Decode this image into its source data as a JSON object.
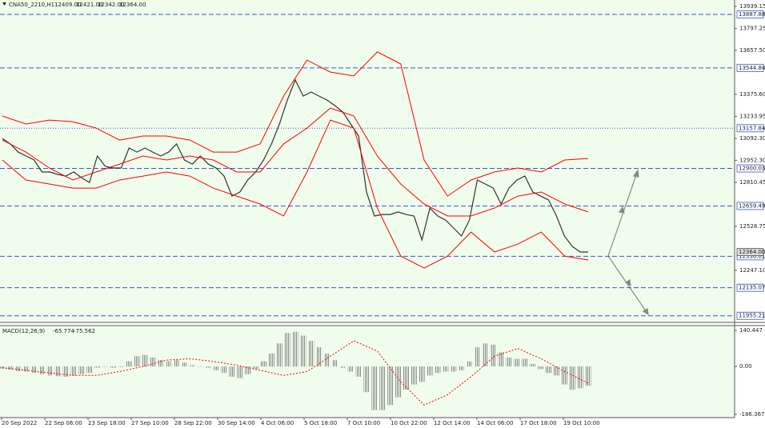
{
  "chart_data": [
    {
      "type": "line",
      "title": "CNA50_2210,H1",
      "ohlc": [
        "12409.00",
        "12421.00",
        "12342.00",
        "12364.00"
      ],
      "ylim": [
        11918,
        13980
      ],
      "yticks": [
        13939.15,
        13797.25,
        {
          "value": 13657.5,
          "label": "13657.50"
        },
        {
          "value": 13375.6,
          "label": "13375.60"
        },
        13233.95,
        {
          "value": 13092.3,
          "label": "13092.30"
        },
        {
          "value": 12952.3,
          "label": "12952.30"
        },
        12810.45,
        12528.75,
        {
          "value": 12247.1,
          "label": "12247.10"
        }
      ],
      "levels": [
        13887.88,
        13544.84,
        13157.84,
        12900.03,
        12659.49,
        12336.61,
        12135.07,
        11955.21
      ],
      "level_styles": [
        "dashed",
        "dashed",
        "dotted",
        "dashed",
        "dashed",
        "dashed",
        "dashed",
        "dashed"
      ],
      "level_color": "#3a55d8",
      "current_price": {
        "value": 12364,
        "label": "12364.00"
      },
      "x_labels": [
        "20 Sep 2022",
        "22 Sep 06:00",
        "23 Sep 18:00",
        "27 Sep 10:00",
        "28 Sep 22:00",
        "30 Sep 14:00",
        "4 Oct 06:00",
        "5 Oct 18:00",
        "7 Oct 10:00",
        "10 Oct 22:00",
        "12 Oct 14:00",
        "14 Oct 06:00",
        "17 Oct 18:00",
        "19 Oct 10:00"
      ],
      "series": [
        {
          "color": "#333333",
          "values": [
            13092,
            13057,
            13005,
            12980,
            12954,
            12877,
            12877,
            12862,
            12851,
            12877,
            12841,
            12810,
            12980,
            12913,
            12903,
            12903,
            13031,
            13005,
            13031,
            13005,
            12980,
            13005,
            13057,
            12954,
            12928,
            12980,
            12928,
            12903,
            12851,
            12723,
            12749,
            12826,
            12877,
            12954,
            13057,
            13185,
            13339,
            13467,
            13364,
            13390,
            13364,
            13339,
            13303,
            13262,
            13185,
            13108,
            12749,
            12595,
            12605,
            12605,
            12621,
            12605,
            12595,
            12441,
            12646,
            12595,
            12569,
            12518,
            12467,
            12569,
            12826,
            12800,
            12774,
            12672,
            12774,
            12826,
            12851,
            12749,
            12723,
            12698,
            12595,
            12467,
            12400,
            12364,
            12364
          ]
        },
        {
          "color": "#ff0000",
          "values": [
            13236,
            13185,
            13210,
            13200,
            13159,
            13082,
            13108,
            13108,
            13082,
            13005,
            13005,
            13057,
            13364,
            13595,
            13518,
            13493,
            13647,
            13570,
            12954,
            12723,
            12826,
            12877,
            12903,
            12877,
            12954,
            12964
          ]
        },
        {
          "color": "#ff0000",
          "values": [
            13082,
            13005,
            12903,
            12826,
            12877,
            12928,
            12980,
            12954,
            12980,
            12954,
            12877,
            12877,
            13057,
            13159,
            13287,
            13236,
            12980,
            12800,
            12672,
            12595,
            12595,
            12646,
            12723,
            12749,
            12672,
            12621
          ]
        },
        {
          "color": "#ff0000",
          "values": [
            12954,
            12826,
            12800,
            12774,
            12774,
            12826,
            12851,
            12877,
            12851,
            12774,
            12723,
            12672,
            12595,
            12877,
            13210,
            13159,
            12646,
            12338,
            12261,
            12338,
            12492,
            12364,
            12415,
            12492,
            12338,
            12313
          ]
        }
      ]
    },
    {
      "type": "bar",
      "title": "MACD(12,26,9)",
      "readout": [
        -65.774,
        -75.562
      ],
      "ylim": [
        -199,
        156
      ],
      "yticks": [
        140.447,
        {
          "value": 0,
          "label": "0.00"
        },
        -186.367
      ],
      "color": "#888888",
      "values": [
        -8,
        -12,
        -18,
        -20,
        -25,
        -30,
        -35,
        -38,
        -40,
        -35,
        -30,
        -25,
        -5,
        0,
        -5,
        -2,
        20,
        40,
        45,
        35,
        25,
        20,
        25,
        15,
        5,
        0,
        -5,
        -15,
        -25,
        -40,
        -45,
        -30,
        -10,
        20,
        50,
        90,
        130,
        135,
        120,
        100,
        75,
        50,
        25,
        -5,
        -20,
        -40,
        -100,
        -170,
        -170,
        -150,
        -120,
        -90,
        -70,
        -60,
        -35,
        -25,
        -20,
        -20,
        -15,
        20,
        75,
        90,
        85,
        55,
        35,
        30,
        30,
        10,
        -10,
        -25,
        -35,
        -70,
        -90,
        -85,
        -75
      ],
      "signal": {
        "color": "#ff0000",
        "values": [
          -5,
          -15,
          -25,
          -35,
          -35,
          -20,
          0,
          25,
          30,
          20,
          5,
          -15,
          -35,
          -20,
          40,
          100,
          60,
          -60,
          -150,
          -110,
          -40,
          40,
          70,
          30,
          -20,
          -65
        ]
      }
    }
  ]
}
